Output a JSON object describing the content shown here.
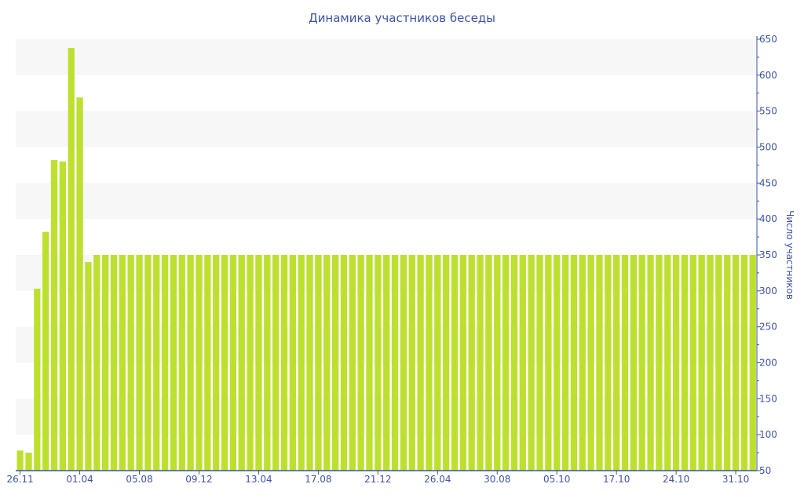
{
  "chart_data": {
    "type": "bar",
    "title": "Динамика участников беседы",
    "xlabel": "",
    "ylabel": "Число участников",
    "ylim": [
      50,
      650
    ],
    "yticks": [
      50,
      100,
      150,
      200,
      250,
      300,
      350,
      400,
      450,
      500,
      550,
      600,
      650
    ],
    "y_axis_side": "right",
    "grid": "alternating horizontal bands",
    "xtick_labels": [
      {
        "bar_index": 0,
        "label": "26.11"
      },
      {
        "bar_index": 7,
        "label": "01.04"
      },
      {
        "bar_index": 14,
        "label": "05.08"
      },
      {
        "bar_index": 21,
        "label": "09.12"
      },
      {
        "bar_index": 28,
        "label": "13.04"
      },
      {
        "bar_index": 35,
        "label": "17.08"
      },
      {
        "bar_index": 42,
        "label": "21.12"
      },
      {
        "bar_index": 49,
        "label": "26.04"
      },
      {
        "bar_index": 56,
        "label": "30.08"
      },
      {
        "bar_index": 63,
        "label": "05.10"
      },
      {
        "bar_index": 70,
        "label": "17.10"
      },
      {
        "bar_index": 77,
        "label": "24.10"
      },
      {
        "bar_index": 84,
        "label": "31.10"
      }
    ],
    "values": [
      78,
      75,
      303,
      382,
      482,
      480,
      638,
      569,
      340,
      350,
      350,
      350,
      350,
      350,
      350,
      350,
      350,
      350,
      350,
      350,
      350,
      350,
      350,
      350,
      350,
      350,
      350,
      350,
      350,
      350,
      350,
      350,
      350,
      350,
      350,
      350,
      350,
      350,
      350,
      350,
      350,
      350,
      350,
      350,
      350,
      350,
      350,
      350,
      350,
      350,
      350,
      350,
      350,
      350,
      350,
      350,
      350,
      350,
      350,
      350,
      350,
      350,
      350,
      350,
      350,
      350,
      350,
      350,
      350,
      350,
      350,
      350,
      350,
      350,
      350,
      350,
      350,
      350,
      350,
      350,
      350,
      350,
      350,
      350,
      350,
      350,
      350
    ],
    "colors": {
      "bar": "#bde02f",
      "axis": "#3e54a3",
      "band": "#f7f7f7"
    }
  }
}
